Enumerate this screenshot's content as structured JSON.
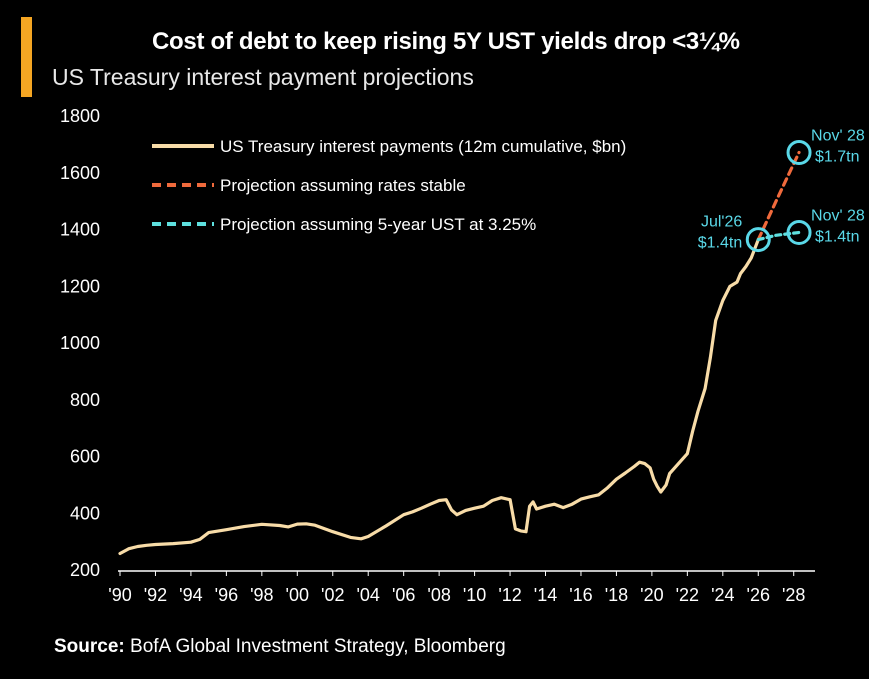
{
  "header": {
    "title": "Cost of debt to keep rising 5Y UST yields drop <3¼%",
    "subtitle": "US Treasury interest payment projections"
  },
  "footer": {
    "source_label": "Source:",
    "source_text": "BofA Global Investment Strategy, Bloomberg"
  },
  "colors": {
    "accent": "#f5a623",
    "history": "#f8dca8",
    "stable": "#f06a3c",
    "ust325": "#5ee0df",
    "annotation": "#5ad8e8",
    "background": "#000000"
  },
  "chart_data": {
    "type": "line",
    "xlim": [
      1990,
      2029.2
    ],
    "ylim": [
      200,
      1850
    ],
    "yticks": [
      200,
      400,
      600,
      800,
      1000,
      1200,
      1400,
      1600,
      1800
    ],
    "xticks": [
      1990,
      1992,
      1994,
      1996,
      1998,
      2000,
      2002,
      2004,
      2006,
      2008,
      2010,
      2012,
      2014,
      2016,
      2018,
      2020,
      2022,
      2024,
      2026,
      2028
    ],
    "xtick_labels": [
      "'90",
      "'92",
      "'94",
      "'96",
      "'98",
      "'00",
      "'02",
      "'04",
      "'06",
      "'08",
      "'10",
      "'12",
      "'14",
      "'16",
      "'18",
      "'20",
      "'22",
      "'24",
      "'26",
      "'28"
    ],
    "legend_position": "top-left",
    "series": [
      {
        "name": "US Treasury interest payments (12m cumulative, $bn)",
        "style": "solid",
        "x": [
          1990.0,
          1990.5,
          1991.0,
          1991.5,
          1992.0,
          1993.0,
          1994.0,
          1994.5,
          1995.0,
          1996.0,
          1997.0,
          1998.0,
          1999.0,
          1999.5,
          2000.0,
          2000.5,
          2001.0,
          2002.0,
          2003.0,
          2003.6,
          2004.0,
          2005.0,
          2006.0,
          2006.5,
          2007.0,
          2007.5,
          2008.0,
          2008.4,
          2008.7,
          2009.0,
          2009.5,
          2010.0,
          2010.5,
          2011.0,
          2011.5,
          2012.0,
          2012.3,
          2012.6,
          2012.9,
          2013.1,
          2013.3,
          2013.5,
          2014.0,
          2014.5,
          2015.0,
          2015.5,
          2016.0,
          2016.5,
          2017.0,
          2017.5,
          2018.0,
          2018.5,
          2019.0,
          2019.3,
          2019.6,
          2019.9,
          2020.1,
          2020.3,
          2020.5,
          2020.8,
          2021.0,
          2021.5,
          2022.0,
          2022.3,
          2022.6,
          2023.0,
          2023.3,
          2023.6,
          2024.0,
          2024.4,
          2024.8,
          2025.0,
          2025.3,
          2025.6,
          2026.0
        ],
        "y": [
          258,
          275,
          283,
          287,
          290,
          293,
          298,
          308,
          332,
          342,
          353,
          361,
          357,
          352,
          362,
          363,
          358,
          335,
          315,
          310,
          318,
          355,
          395,
          405,
          418,
          432,
          445,
          448,
          412,
          395,
          410,
          418,
          425,
          445,
          455,
          448,
          345,
          338,
          335,
          425,
          440,
          415,
          425,
          432,
          420,
          432,
          450,
          458,
          465,
          490,
          520,
          542,
          565,
          580,
          575,
          560,
          520,
          495,
          475,
          500,
          540,
          575,
          610,
          690,
          760,
          840,
          950,
          1080,
          1150,
          1200,
          1215,
          1245,
          1270,
          1300,
          1365
        ]
      },
      {
        "name": "Projection assuming rates stable",
        "style": "dashed",
        "x": [
          2026.0,
          2027.0,
          2028.3
        ],
        "y": [
          1365,
          1500,
          1672
        ]
      },
      {
        "name": "Projection assuming 5-year UST at 3.25%",
        "style": "dashed",
        "x": [
          2026.0,
          2027.0,
          2028.3
        ],
        "y": [
          1365,
          1380,
          1390
        ]
      }
    ],
    "annotations": [
      {
        "lines": [
          "Jul'26",
          "$1.4tn"
        ],
        "x": 2026.0,
        "y": 1365,
        "anchor": "left"
      },
      {
        "lines": [
          "Nov' 28",
          "$1.7tn"
        ],
        "x": 2028.3,
        "y": 1672,
        "anchor": "right"
      },
      {
        "lines": [
          "Nov' 28",
          "$1.4tn"
        ],
        "x": 2028.3,
        "y": 1390,
        "anchor": "right"
      }
    ]
  }
}
